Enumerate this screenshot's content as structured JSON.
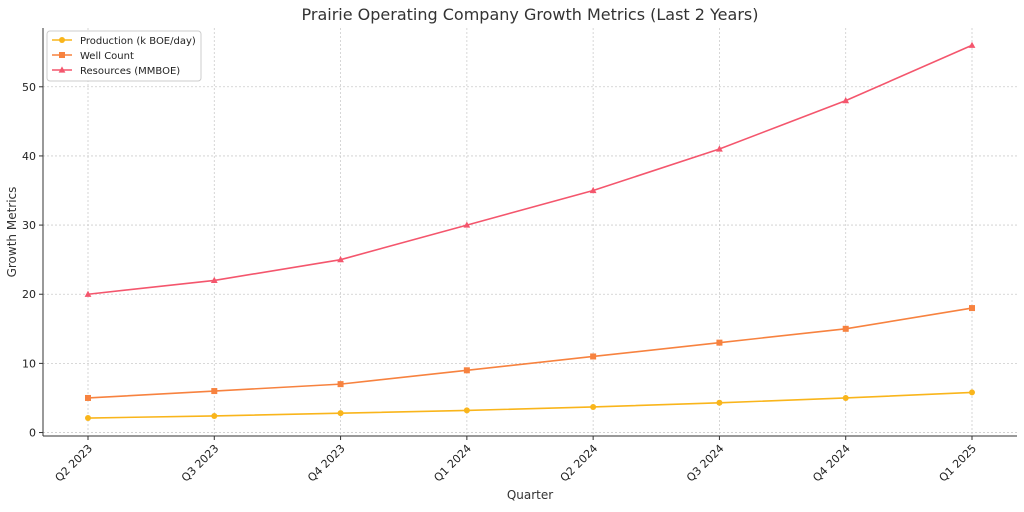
{
  "chart_data": {
    "type": "line",
    "title": "Prairie Operating Company Growth Metrics (Last 2 Years)",
    "xlabel": "Quarter",
    "ylabel": "Growth Metrics",
    "categories": [
      "Q2 2023",
      "Q3 2023",
      "Q4 2023",
      "Q1 2024",
      "Q2 2024",
      "Q3 2024",
      "Q4 2024",
      "Q1 2025"
    ],
    "ylim": [
      -0.5,
      58.5
    ],
    "yticks": [
      "0",
      "10",
      "20",
      "30",
      "40",
      "50"
    ],
    "grid": true,
    "legend_position": "top-left",
    "series": [
      {
        "name": "Production (k BOE/day)",
        "color": "#f9b51b",
        "marker": "circle",
        "values": [
          2.1,
          2.4,
          2.8,
          3.2,
          3.7,
          4.3,
          5.0,
          5.8
        ]
      },
      {
        "name": "Well Count",
        "color": "#f7823f",
        "marker": "square",
        "values": [
          5,
          6,
          7,
          9,
          11,
          13,
          15,
          18
        ]
      },
      {
        "name": "Resources (MMBOE)",
        "color": "#f4566d",
        "marker": "triangle",
        "values": [
          20,
          22,
          25,
          30,
          35,
          41,
          48,
          56
        ]
      }
    ]
  }
}
